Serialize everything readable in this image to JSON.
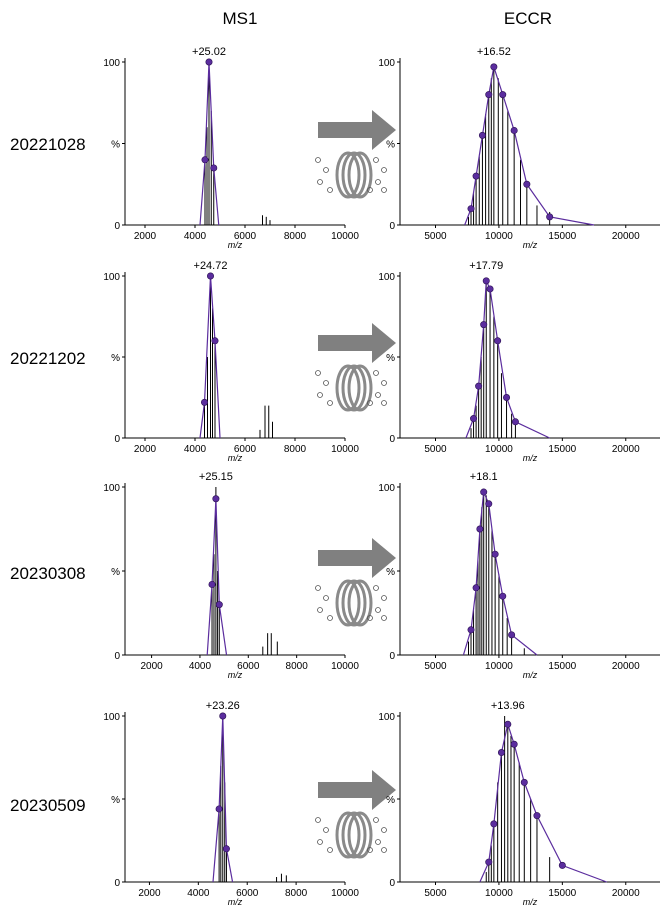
{
  "headers": [
    "MS1",
    "ECCR"
  ],
  "row_labels": [
    "20221028",
    "20221202",
    "20230308",
    "20230509"
  ],
  "chart_data": [
    {
      "type": "spectrum",
      "annotation": "+25.02",
      "x_label": "m/z",
      "xlim": [
        1200,
        10000
      ],
      "xticks": [
        2000,
        4000,
        6000,
        8000,
        10000
      ],
      "ylim": [
        0,
        100
      ],
      "yticks": [
        0,
        {
          "value": 50,
          "label": "%"
        },
        100
      ],
      "series": [
        {
          "color": "#5b2d9e",
          "x": [
            4200,
            4400,
            4560,
            4750,
            4950
          ],
          "values": [
            0,
            40,
            100,
            35,
            0
          ]
        }
      ],
      "sticks": {
        "color": "#000000",
        "x": [
          4400,
          4480,
          4560,
          4650,
          4750,
          6700,
          6850,
          7000
        ],
        "values": [
          40,
          60,
          100,
          70,
          35,
          6,
          5,
          3
        ]
      }
    },
    {
      "type": "spectrum",
      "annotation": "+16.52",
      "x_label": "m/z",
      "xlim": [
        2200,
        22700
      ],
      "xticks": [
        5000,
        10000,
        15000,
        20000
      ],
      "ylim": [
        0,
        100
      ],
      "yticks": [
        0,
        {
          "value": 50,
          "label": "%"
        },
        100
      ],
      "series": [
        {
          "color": "#5b2d9e",
          "x": [
            7300,
            7800,
            8200,
            8700,
            9200,
            9600,
            10300,
            11200,
            12200,
            14000,
            17500
          ],
          "values": [
            0,
            10,
            30,
            55,
            80,
            97,
            80,
            58,
            25,
            5,
            0
          ]
        }
      ],
      "sticks": {
        "color": "#000000",
        "x": [
          7600,
          7800,
          8000,
          8200,
          8450,
          8700,
          8950,
          9200,
          9400,
          9600,
          9950,
          10300,
          10700,
          11200,
          11700,
          12200,
          13000,
          14000
        ],
        "values": [
          5,
          10,
          20,
          30,
          42,
          55,
          68,
          80,
          90,
          97,
          90,
          80,
          70,
          58,
          40,
          25,
          12,
          8
        ]
      }
    },
    {
      "type": "spectrum",
      "annotation": "+24.72",
      "x_label": "m/z",
      "xlim": [
        1200,
        10000
      ],
      "xticks": [
        2000,
        4000,
        6000,
        8000,
        10000
      ],
      "ylim": [
        0,
        100
      ],
      "yticks": [
        0,
        {
          "value": 50,
          "label": "%"
        },
        100
      ],
      "series": [
        {
          "color": "#5b2d9e",
          "x": [
            4200,
            4380,
            4620,
            4800,
            5000
          ],
          "values": [
            0,
            22,
            100,
            60,
            0
          ]
        }
      ],
      "sticks": {
        "color": "#000000",
        "x": [
          4380,
          4500,
          4620,
          4700,
          4800,
          6600,
          6800,
          6950,
          7100
        ],
        "values": [
          22,
          50,
          100,
          80,
          60,
          5,
          20,
          20,
          10
        ]
      }
    },
    {
      "type": "spectrum",
      "annotation": "+17.79",
      "x_label": "m/z",
      "xlim": [
        2200,
        22700
      ],
      "xticks": [
        5000,
        10000,
        15000,
        20000
      ],
      "ylim": [
        0,
        100
      ],
      "yticks": [
        0,
        {
          "value": 50,
          "label": "%"
        },
        100
      ],
      "series": [
        {
          "color": "#5b2d9e",
          "x": [
            7400,
            8000,
            8400,
            8800,
            9000,
            9300,
            9900,
            10600,
            11300,
            14000
          ],
          "values": [
            0,
            12,
            32,
            70,
            97,
            92,
            60,
            25,
            10,
            0
          ]
        }
      ],
      "sticks": {
        "color": "#000000",
        "x": [
          7800,
          8000,
          8200,
          8400,
          8600,
          8800,
          9000,
          9300,
          9600,
          9900,
          10200,
          10600,
          11000,
          11300
        ],
        "values": [
          6,
          12,
          20,
          32,
          50,
          70,
          97,
          92,
          75,
          60,
          40,
          25,
          15,
          10
        ]
      }
    },
    {
      "type": "spectrum",
      "annotation": "+25.15",
      "x_label": "m/z",
      "xlim": [
        900,
        10000
      ],
      "xticks": [
        2000,
        4000,
        6000,
        8000,
        10000
      ],
      "ylim": [
        0,
        100
      ],
      "yticks": [
        0,
        {
          "value": 50,
          "label": "%"
        },
        100
      ],
      "series": [
        {
          "color": "#5b2d9e",
          "x": [
            4300,
            4500,
            4660,
            4800,
            5100
          ],
          "values": [
            0,
            42,
            93,
            30,
            0
          ]
        }
      ],
      "sticks": {
        "color": "#000000",
        "x": [
          4500,
          4580,
          4660,
          4730,
          4800,
          6600,
          6800,
          6950,
          7200
        ],
        "values": [
          42,
          60,
          100,
          50,
          30,
          5,
          13,
          13,
          8
        ]
      }
    },
    {
      "type": "spectrum",
      "annotation": "+18.1",
      "x_label": "m/z",
      "xlim": [
        2200,
        22700
      ],
      "xticks": [
        5000,
        10000,
        15000,
        20000
      ],
      "ylim": [
        0,
        100
      ],
      "yticks": [
        0,
        {
          "value": 50,
          "label": "%"
        },
        100
      ],
      "series": [
        {
          "color": "#5b2d9e",
          "x": [
            7200,
            7800,
            8200,
            8500,
            8800,
            9200,
            9700,
            10300,
            11000,
            13000
          ],
          "values": [
            0,
            15,
            40,
            75,
            97,
            90,
            60,
            35,
            12,
            0
          ]
        }
      ],
      "sticks": {
        "color": "#000000",
        "x": [
          7600,
          7800,
          8000,
          8200,
          8350,
          8500,
          8650,
          8800,
          9000,
          9200,
          9450,
          9700,
          10000,
          10300,
          10650,
          11000,
          12000
        ],
        "values": [
          8,
          15,
          28,
          40,
          58,
          75,
          88,
          97,
          95,
          90,
          75,
          60,
          48,
          35,
          22,
          12,
          4
        ]
      }
    },
    {
      "type": "spectrum",
      "annotation": "+23.26",
      "x_label": "m/z",
      "xlim": [
        1000,
        10000
      ],
      "xticks": [
        2000,
        4000,
        6000,
        8000,
        10000
      ],
      "ylim": [
        0,
        100
      ],
      "yticks": [
        0,
        {
          "value": 50,
          "label": "%"
        },
        100
      ],
      "series": [
        {
          "color": "#5b2d9e",
          "x": [
            4600,
            4850,
            5000,
            5150,
            5400
          ],
          "values": [
            0,
            44,
            100,
            20,
            0
          ]
        }
      ],
      "sticks": {
        "color": "#000000",
        "x": [
          4850,
          4920,
          5000,
          5080,
          5150,
          7200,
          7400,
          7600
        ],
        "values": [
          44,
          70,
          100,
          60,
          20,
          3,
          5,
          4
        ]
      }
    },
    {
      "type": "spectrum",
      "annotation": "+13.96",
      "x_label": "m/z",
      "xlim": [
        2200,
        22700
      ],
      "xticks": [
        5000,
        10000,
        15000,
        20000
      ],
      "ylim": [
        0,
        100
      ],
      "yticks": [
        0,
        {
          "value": 50,
          "label": "%"
        },
        100
      ],
      "series": [
        {
          "color": "#5b2d9e",
          "x": [
            8500,
            9200,
            9600,
            10200,
            10700,
            11200,
            12000,
            13000,
            15000,
            18500
          ],
          "values": [
            0,
            12,
            35,
            78,
            95,
            83,
            60,
            40,
            10,
            0
          ]
        }
      ],
      "sticks": {
        "color": "#000000",
        "x": [
          9000,
          9200,
          9400,
          9600,
          9900,
          10200,
          10450,
          10700,
          10950,
          11200,
          11600,
          12000,
          12500,
          13000,
          14000
        ],
        "values": [
          6,
          12,
          22,
          35,
          60,
          78,
          100,
          95,
          88,
          83,
          72,
          60,
          50,
          40,
          15
        ]
      }
    }
  ]
}
